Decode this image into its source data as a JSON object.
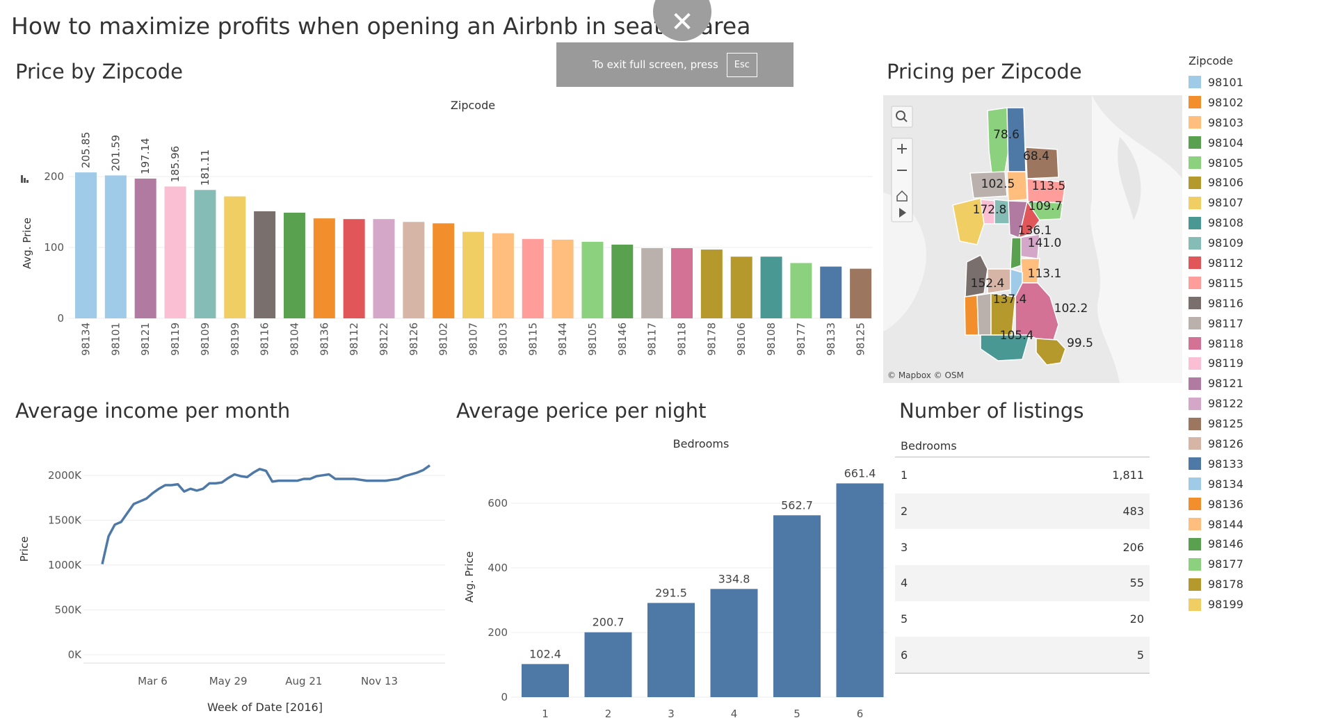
{
  "dashboard_title": "How to maximize profits when opening an Airbnb in seattle area",
  "fullscreen": {
    "message": "To exit full screen, press",
    "key": "Esc",
    "close_glyph": "✕"
  },
  "charts": {
    "price_by_zip": {
      "title": "Price by Zipcode",
      "type": "bar",
      "header": "Zipcode",
      "ylabel": "Avg. Price",
      "ylim": [
        0,
        240
      ],
      "yticks": [
        0,
        100,
        200
      ],
      "categories": [
        "98134",
        "98101",
        "98121",
        "98119",
        "98109",
        "98199",
        "98116",
        "98104",
        "98136",
        "98112",
        "98122",
        "98126",
        "98102",
        "98107",
        "98103",
        "98115",
        "98144",
        "98105",
        "98146",
        "98117",
        "98118",
        "98178",
        "98106",
        "98108",
        "98177",
        "98133",
        "98125"
      ],
      "values": [
        205.85,
        201.59,
        197.14,
        185.96,
        181.11,
        172,
        151,
        149,
        141,
        140,
        140,
        136,
        134,
        122,
        120,
        112,
        111,
        108,
        104,
        99,
        99,
        97,
        87,
        87,
        78,
        73,
        70
      ],
      "labeled_values": [
        "205.85",
        "201.59",
        "197.14",
        "185.96",
        "181.11"
      ]
    },
    "pricing_map": {
      "title": "Pricing per Zipcode",
      "attribution": "© Mapbox  © OSM",
      "region_labels": [
        "78.6",
        "68.4",
        "102.5",
        "113.5",
        "109.7",
        "172.8",
        "136.1",
        "141.0",
        "152.4",
        "113.1",
        "137.4",
        "102.2",
        "105.4",
        "99.5"
      ],
      "controls": [
        "search-icon",
        "zoom-in-icon",
        "zoom-out-icon",
        "home-icon",
        "play-icon"
      ]
    },
    "income_per_month": {
      "title": "Average income per month",
      "type": "line",
      "xlabel": "Week of Date [2016]",
      "ylabel": "Price",
      "ylim": [
        0,
        2200000
      ],
      "yticks": [
        "0K",
        "500K",
        "1000K",
        "1500K",
        "2000K"
      ],
      "ytick_values": [
        0,
        500000,
        1000000,
        1500000,
        2000000
      ],
      "xticks": [
        "Mar 6",
        "May 29",
        "Aug 21",
        "Nov 13"
      ],
      "xtick_weeks": [
        9,
        21,
        33,
        45
      ],
      "weeks": [
        1,
        2,
        3,
        4,
        5,
        6,
        7,
        8,
        9,
        10,
        11,
        12,
        13,
        14,
        15,
        16,
        17,
        18,
        19,
        20,
        21,
        22,
        23,
        24,
        25,
        26,
        27,
        28,
        29,
        30,
        31,
        32,
        33,
        34,
        35,
        36,
        37,
        38,
        39,
        40,
        41,
        42,
        43,
        44,
        45,
        46,
        47,
        48,
        49,
        50,
        51,
        52,
        53
      ],
      "values": [
        1010000,
        1320000,
        1450000,
        1480000,
        1580000,
        1680000,
        1710000,
        1740000,
        1800000,
        1850000,
        1890000,
        1890000,
        1900000,
        1820000,
        1850000,
        1830000,
        1850000,
        1910000,
        1910000,
        1920000,
        1970000,
        2010000,
        1990000,
        1980000,
        2030000,
        2070000,
        2050000,
        1930000,
        1940000,
        1940000,
        1940000,
        1940000,
        1960000,
        1960000,
        1990000,
        2000000,
        2010000,
        1960000,
        1960000,
        1960000,
        1960000,
        1950000,
        1940000,
        1940000,
        1940000,
        1940000,
        1950000,
        1960000,
        1990000,
        2010000,
        2030000,
        2060000,
        2110000
      ]
    },
    "price_per_night": {
      "title": "Average perice per night",
      "type": "bar",
      "header": "Bedrooms",
      "ylabel": "Avg. Price",
      "ylim": [
        0,
        700
      ],
      "yticks": [
        0,
        200,
        400,
        600
      ],
      "categories": [
        "1",
        "2",
        "3",
        "4",
        "5",
        "6"
      ],
      "values": [
        102.4,
        200.7,
        291.5,
        334.8,
        562.7,
        661.4
      ],
      "value_labels": [
        "102.4",
        "200.7",
        "291.5",
        "334.8",
        "562.7",
        "661.4"
      ],
      "color": "#4e79a7"
    },
    "listings": {
      "title": "Number of listings",
      "type": "table",
      "header": "Bedrooms",
      "rows": [
        {
          "bedrooms": "1",
          "count": "1,811"
        },
        {
          "bedrooms": "2",
          "count": "483"
        },
        {
          "bedrooms": "3",
          "count": "206"
        },
        {
          "bedrooms": "4",
          "count": "55"
        },
        {
          "bedrooms": "5",
          "count": "20"
        },
        {
          "bedrooms": "6",
          "count": "5"
        }
      ]
    }
  },
  "legend": {
    "title": "Zipcode",
    "items": [
      {
        "zip": "98101",
        "color": "#a0cbe8"
      },
      {
        "zip": "98102",
        "color": "#f28e2b"
      },
      {
        "zip": "98103",
        "color": "#ffbe7d"
      },
      {
        "zip": "98104",
        "color": "#59a14f"
      },
      {
        "zip": "98105",
        "color": "#8cd17d"
      },
      {
        "zip": "98106",
        "color": "#b6992d"
      },
      {
        "zip": "98107",
        "color": "#f1ce63"
      },
      {
        "zip": "98108",
        "color": "#499894"
      },
      {
        "zip": "98109",
        "color": "#86bcb6"
      },
      {
        "zip": "98112",
        "color": "#e15759"
      },
      {
        "zip": "98115",
        "color": "#ff9d9a"
      },
      {
        "zip": "98116",
        "color": "#79706e"
      },
      {
        "zip": "98117",
        "color": "#bab0ac"
      },
      {
        "zip": "98118",
        "color": "#d37295"
      },
      {
        "zip": "98119",
        "color": "#fabfd2"
      },
      {
        "zip": "98121",
        "color": "#b07aa1"
      },
      {
        "zip": "98122",
        "color": "#d4a6c8"
      },
      {
        "zip": "98125",
        "color": "#9d7660"
      },
      {
        "zip": "98126",
        "color": "#d7b5a6"
      },
      {
        "zip": "98133",
        "color": "#4e79a7"
      },
      {
        "zip": "98134",
        "color": "#a0cbe8"
      },
      {
        "zip": "98136",
        "color": "#f28e2b"
      },
      {
        "zip": "98144",
        "color": "#ffbe7d"
      },
      {
        "zip": "98146",
        "color": "#59a14f"
      },
      {
        "zip": "98177",
        "color": "#8cd17d"
      },
      {
        "zip": "98178",
        "color": "#b6992d"
      },
      {
        "zip": "98199",
        "color": "#f1ce63"
      }
    ]
  }
}
